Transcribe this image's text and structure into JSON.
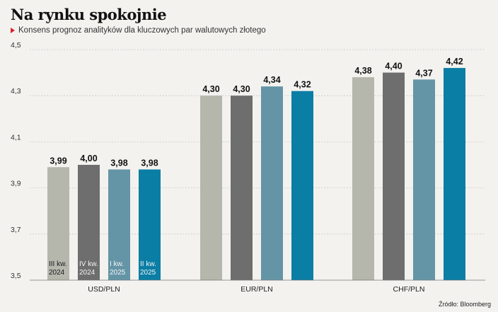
{
  "title": "Na rynku spokojnie",
  "subtitle": "Konsens prognoz analityków dla kluczowych par walutowych złotego",
  "source": "Źródło: Bloomberg",
  "colors": [
    "#b5b7ad",
    "#6e6e6e",
    "#6495a6",
    "#0a7ea4"
  ],
  "chart_data": {
    "type": "bar",
    "title": "Na rynku spokojnie",
    "subtitle": "Konsens prognoz analityków dla kluczowych par walutowych złotego",
    "categories": [
      "USD/PLN",
      "EUR/PLN",
      "CHF/PLN"
    ],
    "series": [
      {
        "name": "III kw. 2024",
        "label_lines": [
          "III kw.",
          "2024"
        ],
        "values": [
          3.99,
          4.3,
          4.38
        ],
        "labels": [
          "3,99",
          "4,30",
          "4,38"
        ]
      },
      {
        "name": "IV kw. 2024",
        "label_lines": [
          "IV kw.",
          "2024"
        ],
        "values": [
          4.0,
          4.3,
          4.4
        ],
        "labels": [
          "4,00",
          "4,30",
          "4,40"
        ]
      },
      {
        "name": "I kw. 2025",
        "label_lines": [
          "I kw.",
          "2025"
        ],
        "values": [
          3.98,
          4.34,
          4.37
        ],
        "labels": [
          "3,98",
          "4,34",
          "4,37"
        ]
      },
      {
        "name": "II kw. 2025",
        "label_lines": [
          "II kw.",
          "2025"
        ],
        "values": [
          3.98,
          4.32,
          4.42
        ],
        "labels": [
          "3,98",
          "4,32",
          "4,42"
        ]
      }
    ],
    "ylim": [
      3.5,
      4.5
    ],
    "yticks": [
      3.5,
      3.7,
      3.9,
      4.1,
      4.3,
      4.5
    ],
    "ytick_labels": [
      "3,5",
      "3,7",
      "3,9",
      "4,1",
      "4,3",
      "4,5"
    ],
    "grid": true,
    "legend": "inside-first-group-bars"
  }
}
